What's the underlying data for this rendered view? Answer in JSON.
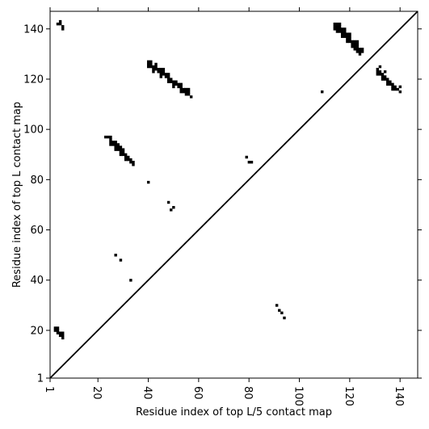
{
  "chart_data": {
    "type": "heatmap",
    "xlabel": "Residue index of top L/5 contact map",
    "ylabel": "Residue index of top L contact map",
    "xlim": [
      1,
      147
    ],
    "ylim": [
      1,
      147
    ],
    "x_ticks": [
      1,
      20,
      40,
      60,
      80,
      100,
      120,
      140
    ],
    "y_ticks": [
      1,
      20,
      40,
      60,
      80,
      100,
      120,
      140
    ],
    "x_tick_labels": [
      "1",
      "20",
      "40",
      "60",
      "80",
      "100",
      "120",
      "140"
    ],
    "y_tick_labels": [
      "1",
      "20",
      "40",
      "60",
      "80",
      "100",
      "120",
      "140"
    ],
    "x_tick_rotation": "vertical",
    "diagonal": "y = x",
    "grid": false,
    "colors": {
      "contact": "#000000",
      "background": "#ffffff",
      "frame": "#000000"
    },
    "upper_triangle_contacts": [
      [
        4,
        142
      ],
      [
        5,
        143
      ],
      [
        5,
        142
      ],
      [
        6,
        141
      ],
      [
        6,
        140
      ],
      [
        40,
        127
      ],
      [
        40,
        126
      ],
      [
        40,
        125
      ],
      [
        41,
        127
      ],
      [
        41,
        126
      ],
      [
        41,
        125
      ],
      [
        42,
        125
      ],
      [
        42,
        124
      ],
      [
        42,
        123
      ],
      [
        43,
        126
      ],
      [
        43,
        125
      ],
      [
        43,
        124
      ],
      [
        44,
        124
      ],
      [
        44,
        123
      ],
      [
        45,
        124
      ],
      [
        45,
        123
      ],
      [
        45,
        122
      ],
      [
        45,
        121
      ],
      [
        46,
        124
      ],
      [
        46,
        123
      ],
      [
        46,
        122
      ],
      [
        47,
        122
      ],
      [
        47,
        121
      ],
      [
        48,
        122
      ],
      [
        48,
        121
      ],
      [
        48,
        120
      ],
      [
        48,
        119
      ],
      [
        49,
        120
      ],
      [
        49,
        119
      ],
      [
        50,
        119
      ],
      [
        50,
        118
      ],
      [
        50,
        117
      ],
      [
        51,
        119
      ],
      [
        51,
        118
      ],
      [
        52,
        118
      ],
      [
        52,
        117
      ],
      [
        53,
        118
      ],
      [
        53,
        117
      ],
      [
        53,
        116
      ],
      [
        53,
        115
      ],
      [
        54,
        116
      ],
      [
        54,
        115
      ],
      [
        55,
        116
      ],
      [
        55,
        115
      ],
      [
        55,
        114
      ],
      [
        56,
        116
      ],
      [
        56,
        115
      ],
      [
        56,
        114
      ],
      [
        57,
        113
      ],
      [
        114,
        142
      ],
      [
        114,
        141
      ],
      [
        114,
        140
      ],
      [
        115,
        142
      ],
      [
        115,
        141
      ],
      [
        115,
        140
      ],
      [
        115,
        139
      ],
      [
        116,
        142
      ],
      [
        116,
        141
      ],
      [
        116,
        140
      ],
      [
        116,
        139
      ],
      [
        117,
        140
      ],
      [
        117,
        139
      ],
      [
        117,
        138
      ],
      [
        117,
        137
      ],
      [
        118,
        140
      ],
      [
        118,
        139
      ],
      [
        118,
        138
      ],
      [
        118,
        137
      ],
      [
        119,
        138
      ],
      [
        119,
        137
      ],
      [
        119,
        136
      ],
      [
        119,
        135
      ],
      [
        120,
        138
      ],
      [
        120,
        137
      ],
      [
        120,
        136
      ],
      [
        120,
        135
      ],
      [
        121,
        135
      ],
      [
        121,
        134
      ],
      [
        121,
        133
      ],
      [
        122,
        135
      ],
      [
        122,
        134
      ],
      [
        122,
        133
      ],
      [
        122,
        132
      ],
      [
        123,
        135
      ],
      [
        123,
        134
      ],
      [
        123,
        133
      ],
      [
        123,
        132
      ],
      [
        123,
        131
      ],
      [
        124,
        132
      ],
      [
        124,
        131
      ],
      [
        124,
        130
      ],
      [
        125,
        132
      ],
      [
        125,
        131
      ],
      [
        109,
        115
      ],
      [
        131,
        124
      ],
      [
        131,
        123
      ],
      [
        131,
        122
      ],
      [
        132,
        125
      ],
      [
        132,
        123
      ],
      [
        132,
        122
      ],
      [
        133,
        122
      ],
      [
        133,
        121
      ],
      [
        133,
        120
      ],
      [
        134,
        123
      ],
      [
        134,
        121
      ],
      [
        134,
        120
      ],
      [
        135,
        120
      ],
      [
        135,
        119
      ],
      [
        135,
        118
      ],
      [
        136,
        119
      ],
      [
        136,
        118
      ],
      [
        137,
        118
      ],
      [
        137,
        117
      ],
      [
        137,
        116
      ],
      [
        138,
        117
      ],
      [
        138,
        116
      ],
      [
        139,
        116
      ],
      [
        140,
        117
      ],
      [
        140,
        115
      ]
    ],
    "lower_triangle_contacts": [
      [
        3,
        21
      ],
      [
        3,
        20
      ],
      [
        4,
        21
      ],
      [
        4,
        20
      ],
      [
        4,
        19
      ],
      [
        5,
        19
      ],
      [
        5,
        18
      ],
      [
        6,
        19
      ],
      [
        6,
        18
      ],
      [
        6,
        17
      ],
      [
        23,
        97
      ],
      [
        24,
        97
      ],
      [
        25,
        97
      ],
      [
        25,
        96
      ],
      [
        25,
        95
      ],
      [
        25,
        94
      ],
      [
        26,
        95
      ],
      [
        26,
        94
      ],
      [
        27,
        95
      ],
      [
        27,
        94
      ],
      [
        27,
        93
      ],
      [
        27,
        92
      ],
      [
        28,
        94
      ],
      [
        28,
        93
      ],
      [
        28,
        92
      ],
      [
        29,
        93
      ],
      [
        29,
        92
      ],
      [
        29,
        91
      ],
      [
        29,
        90
      ],
      [
        30,
        92
      ],
      [
        30,
        91
      ],
      [
        30,
        90
      ],
      [
        31,
        90
      ],
      [
        31,
        89
      ],
      [
        31,
        88
      ],
      [
        32,
        89
      ],
      [
        32,
        88
      ],
      [
        33,
        88
      ],
      [
        33,
        87
      ],
      [
        34,
        87
      ],
      [
        34,
        86
      ],
      [
        40,
        79
      ],
      [
        48,
        71
      ],
      [
        49,
        68
      ],
      [
        50,
        69
      ],
      [
        27,
        50
      ],
      [
        29,
        48
      ],
      [
        33,
        40
      ],
      [
        79,
        89
      ],
      [
        80,
        87
      ],
      [
        81,
        87
      ],
      [
        91,
        30
      ],
      [
        92,
        28
      ],
      [
        93,
        27
      ],
      [
        94,
        25
      ]
    ]
  }
}
